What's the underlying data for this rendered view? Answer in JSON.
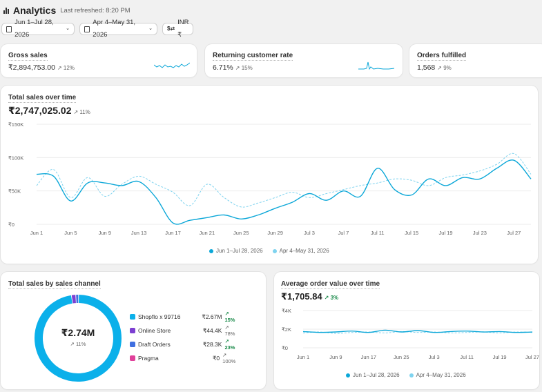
{
  "header": {
    "title": "Analytics",
    "refreshed": "Last refreshed: 8:20 PM",
    "date_range": "Jun 1–Jul 28, 2026",
    "compare_range": "Apr 4–May 31, 2026",
    "currency": "INR ₹"
  },
  "kpis": [
    {
      "label": "Gross sales",
      "value": "₹2,894,753.00",
      "change": "↗ 12%"
    },
    {
      "label": "Returning customer rate",
      "value": "6.71%",
      "change": "↗ 15%"
    },
    {
      "label": "Orders fulfilled",
      "value": "1,568",
      "change": "↗ 9%"
    }
  ],
  "total_sales": {
    "title": "Total sales over time",
    "value": "₹2,747,025.02",
    "change": "↗ 11%",
    "legend_current": "Jun 1–Jul 28, 2026",
    "legend_previous": "Apr 4–May 31, 2026"
  },
  "channels": {
    "title": "Total sales by sales channel",
    "total": "₹2.74M",
    "total_change": "↗ 11%",
    "rows": [
      {
        "name": "Shopflo x 99716",
        "value": "₹2.67M",
        "change": "↗ 15%",
        "color": "#0bb0ea",
        "up": true
      },
      {
        "name": "Online Store",
        "value": "₹44.4K",
        "change": "↗ 78%",
        "color": "#7c3fd1",
        "up": false
      },
      {
        "name": "Draft Orders",
        "value": "₹28.3K",
        "change": "↗ 23%",
        "color": "#3f6fe0",
        "up": true
      },
      {
        "name": "Pragma",
        "value": "₹0",
        "change": "↗ 100%",
        "color": "#e0409a",
        "up": false
      }
    ]
  },
  "aov": {
    "title": "Average order value over time",
    "value": "₹1,705.84",
    "change": "↗ 3%",
    "legend_current": "Jun 1–Jul 28, 2026",
    "legend_previous": "Apr 4–May 31, 2026"
  },
  "colors": {
    "current": "#0ba7d8",
    "previous": "#7fd3ef"
  },
  "chart_data": [
    {
      "type": "line",
      "title": "Total sales over time",
      "x": [
        "Jun 1",
        "Jun 3",
        "Jun 5",
        "Jun 7",
        "Jun 9",
        "Jun 11",
        "Jun 13",
        "Jun 15",
        "Jun 17",
        "Jun 19",
        "Jun 21",
        "Jun 23",
        "Jun 25",
        "Jun 27",
        "Jun 29",
        "Jul 1",
        "Jul 3",
        "Jul 5",
        "Jul 7",
        "Jul 9",
        "Jul 11",
        "Jul 13",
        "Jul 15",
        "Jul 17",
        "Jul 19",
        "Jul 21",
        "Jul 23",
        "Jul 25",
        "Jul 27",
        "Jul 28"
      ],
      "x_ticks": [
        "Jun 1",
        "Jun 5",
        "Jun 9",
        "Jun 13",
        "Jun 17",
        "Jun 21",
        "Jun 25",
        "Jun 29",
        "Jul 3",
        "Jul 7",
        "Jul 11",
        "Jul 15",
        "Jul 19",
        "Jul 23",
        "Jul 27"
      ],
      "y_ticks": [
        "₹0",
        "₹50K",
        "₹100K",
        "₹150K"
      ],
      "ylim": [
        0,
        150000
      ],
      "series": [
        {
          "name": "Jun 1–Jul 28, 2026",
          "values": [
            75000,
            72000,
            35000,
            62000,
            62000,
            58000,
            64000,
            40000,
            2000,
            6000,
            10000,
            14000,
            8000,
            14000,
            24000,
            33000,
            46000,
            36000,
            50000,
            42000,
            84000,
            52000,
            44000,
            68000,
            58000,
            70000,
            68000,
            84000,
            96000,
            68000
          ]
        },
        {
          "name": "Apr 4–May 31, 2026",
          "values": [
            58000,
            82000,
            40000,
            70000,
            42000,
            60000,
            72000,
            60000,
            48000,
            28000,
            60000,
            40000,
            26000,
            32000,
            40000,
            48000,
            40000,
            46000,
            52000,
            58000,
            62000,
            68000,
            66000,
            58000,
            70000,
            74000,
            80000,
            90000,
            106000,
            75000
          ]
        }
      ]
    },
    {
      "type": "pie",
      "title": "Total sales by sales channel",
      "categories": [
        "Shopflo x 99716",
        "Online Store",
        "Draft Orders",
        "Pragma"
      ],
      "values": [
        2670000,
        44400,
        28300,
        0
      ]
    },
    {
      "type": "line",
      "title": "Average order value over time",
      "x": [
        "Jun 1",
        "Jun 5",
        "Jun 9",
        "Jun 13",
        "Jun 17",
        "Jun 21",
        "Jun 25",
        "Jun 29",
        "Jul 3",
        "Jul 7",
        "Jul 11",
        "Jul 15",
        "Jul 19",
        "Jul 23",
        "Jul 27"
      ],
      "x_ticks": [
        "Jun 1",
        "Jun 9",
        "Jun 17",
        "Jun 25",
        "Jul 3",
        "Jul 11",
        "Jul 19",
        "Jul 27"
      ],
      "y_ticks": [
        "₹0",
        "₹2K",
        "₹4K"
      ],
      "ylim": [
        0,
        4000
      ],
      "series": [
        {
          "name": "Jun 1–Jul 28, 2026",
          "values": [
            1750,
            1650,
            1700,
            1800,
            1650,
            1900,
            1700,
            1850,
            1650,
            1750,
            1800,
            1700,
            1750,
            1650,
            1700
          ]
        },
        {
          "name": "Apr 4–May 31, 2026",
          "values": [
            1600,
            1700,
            1550,
            1650,
            1700,
            1600,
            1750,
            1650,
            1700,
            1600,
            1650,
            1700,
            1600,
            1700,
            1650
          ]
        }
      ]
    }
  ]
}
